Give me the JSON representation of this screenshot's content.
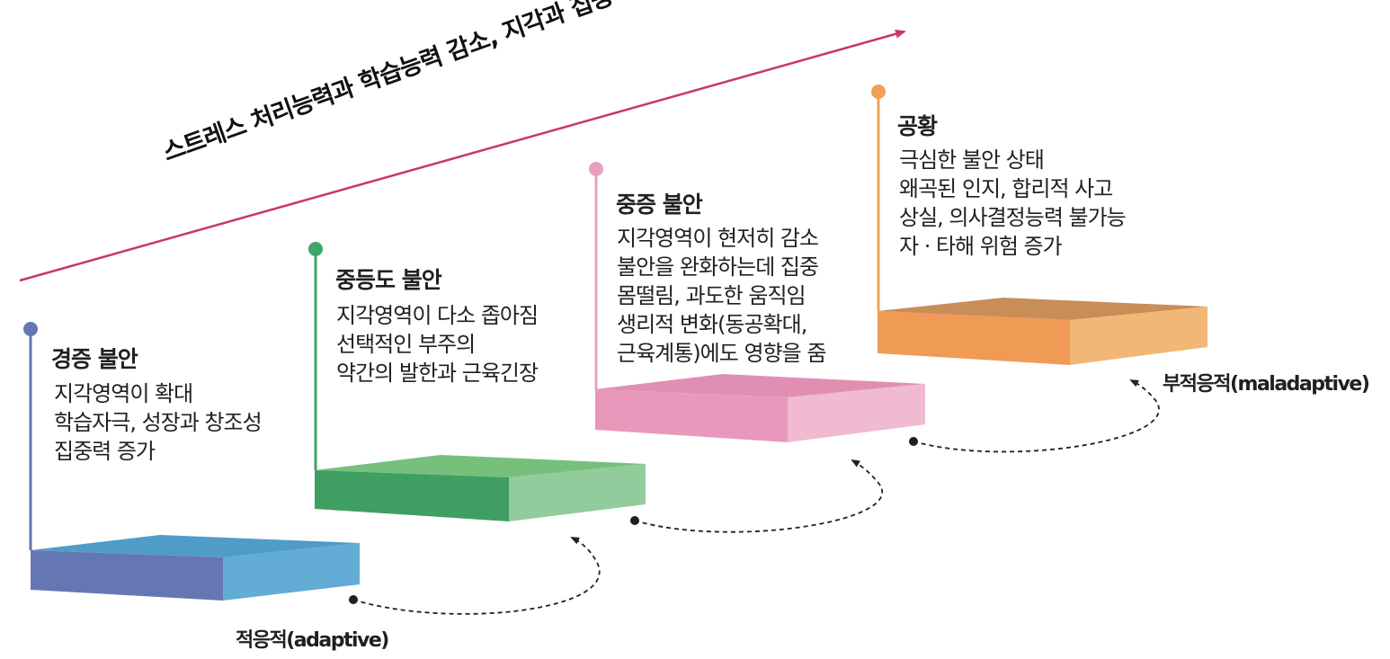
{
  "banner": "스트레스 처리능력과 학습능력 감소, 지각과 집중력 감소",
  "stages": [
    {
      "title": "경증 불안",
      "lines": [
        "지각영역이 확대",
        "학습자극, 성장과 창조성",
        "집중력 증가"
      ],
      "color": "#6577b3"
    },
    {
      "title": "중등도 불안",
      "lines": [
        "지각영역이 다소 좁아짐",
        "선택적인 부주의",
        "약간의 발한과 근육긴장"
      ],
      "color": "#3ea66a"
    },
    {
      "title": "중증 불안",
      "lines": [
        "지각영역이 현저히 감소",
        "불안을 완화하는데 집중",
        "몸떨림, 과도한 움직임",
        "생리적 변화(동공확대,",
        "근육계통)에도 영향을 줌"
      ],
      "color": "#e9a0bf"
    },
    {
      "title": "공황",
      "lines": [
        "극심한 불안 상태",
        "왜곡된 인지, 합리적 사고",
        "상실, 의사결정능력 불가능",
        "자 · 타해 위험 증가"
      ],
      "color": "#f0a058"
    }
  ],
  "adaptive_label": "적응적(adaptive)",
  "maladaptive_label": "부적응적(maladaptive)",
  "accent_color": "#c8386a"
}
